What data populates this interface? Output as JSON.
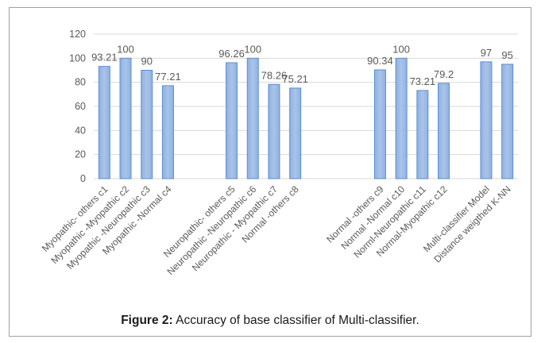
{
  "figure": {
    "caption_label": "Figure 2:",
    "caption_text": " Accuracy of base classifier of Multi-classifier."
  },
  "chart_data": {
    "type": "bar",
    "title": "",
    "xlabel": "",
    "ylabel": "",
    "ylim": [
      0,
      120
    ],
    "yticks": [
      0,
      20,
      40,
      60,
      80,
      100,
      120
    ],
    "grid": true,
    "legend": "none",
    "colors": {
      "bar_fill": "#a9c4ea",
      "bar_fill_dark": "#8fb1e0",
      "bar_edge": "#5b8fd0",
      "grid": "#d9d9d9",
      "tick_text": "#595959"
    },
    "categories": [
      "Myopathic- others c1",
      "Myopathic -Myopathic c2",
      "Myopathic -Neuropathic c3",
      "Myopathic -Normal c4",
      "",
      "",
      "Neuropathic- others c5",
      "Neuropathic -Neuropathic c6",
      "Neuropathic - Myopathic c7",
      "Normal -others c8",
      "",
      "",
      "",
      "Normal -others c9",
      "Normal -Normal c10",
      "Norml-Neuropathic c11",
      "Normal-Myopathic c12",
      "",
      "Multi-classifier Model",
      "Distance weigthed K-NN"
    ],
    "values": [
      93.21,
      100,
      90,
      77.21,
      null,
      null,
      96.26,
      100,
      78.26,
      75.21,
      null,
      null,
      null,
      90.34,
      100,
      73.21,
      79.2,
      null,
      97,
      95
    ],
    "data_labels": [
      "93.21",
      "100",
      "90",
      "77.21",
      "",
      "",
      "96.26",
      "100",
      "78.26",
      "75.21",
      "",
      "",
      "",
      "",
      "100",
      "73.21",
      "79.2",
      "",
      "97",
      "95"
    ],
    "data_labels_extra": {
      "13": "90.34"
    }
  }
}
